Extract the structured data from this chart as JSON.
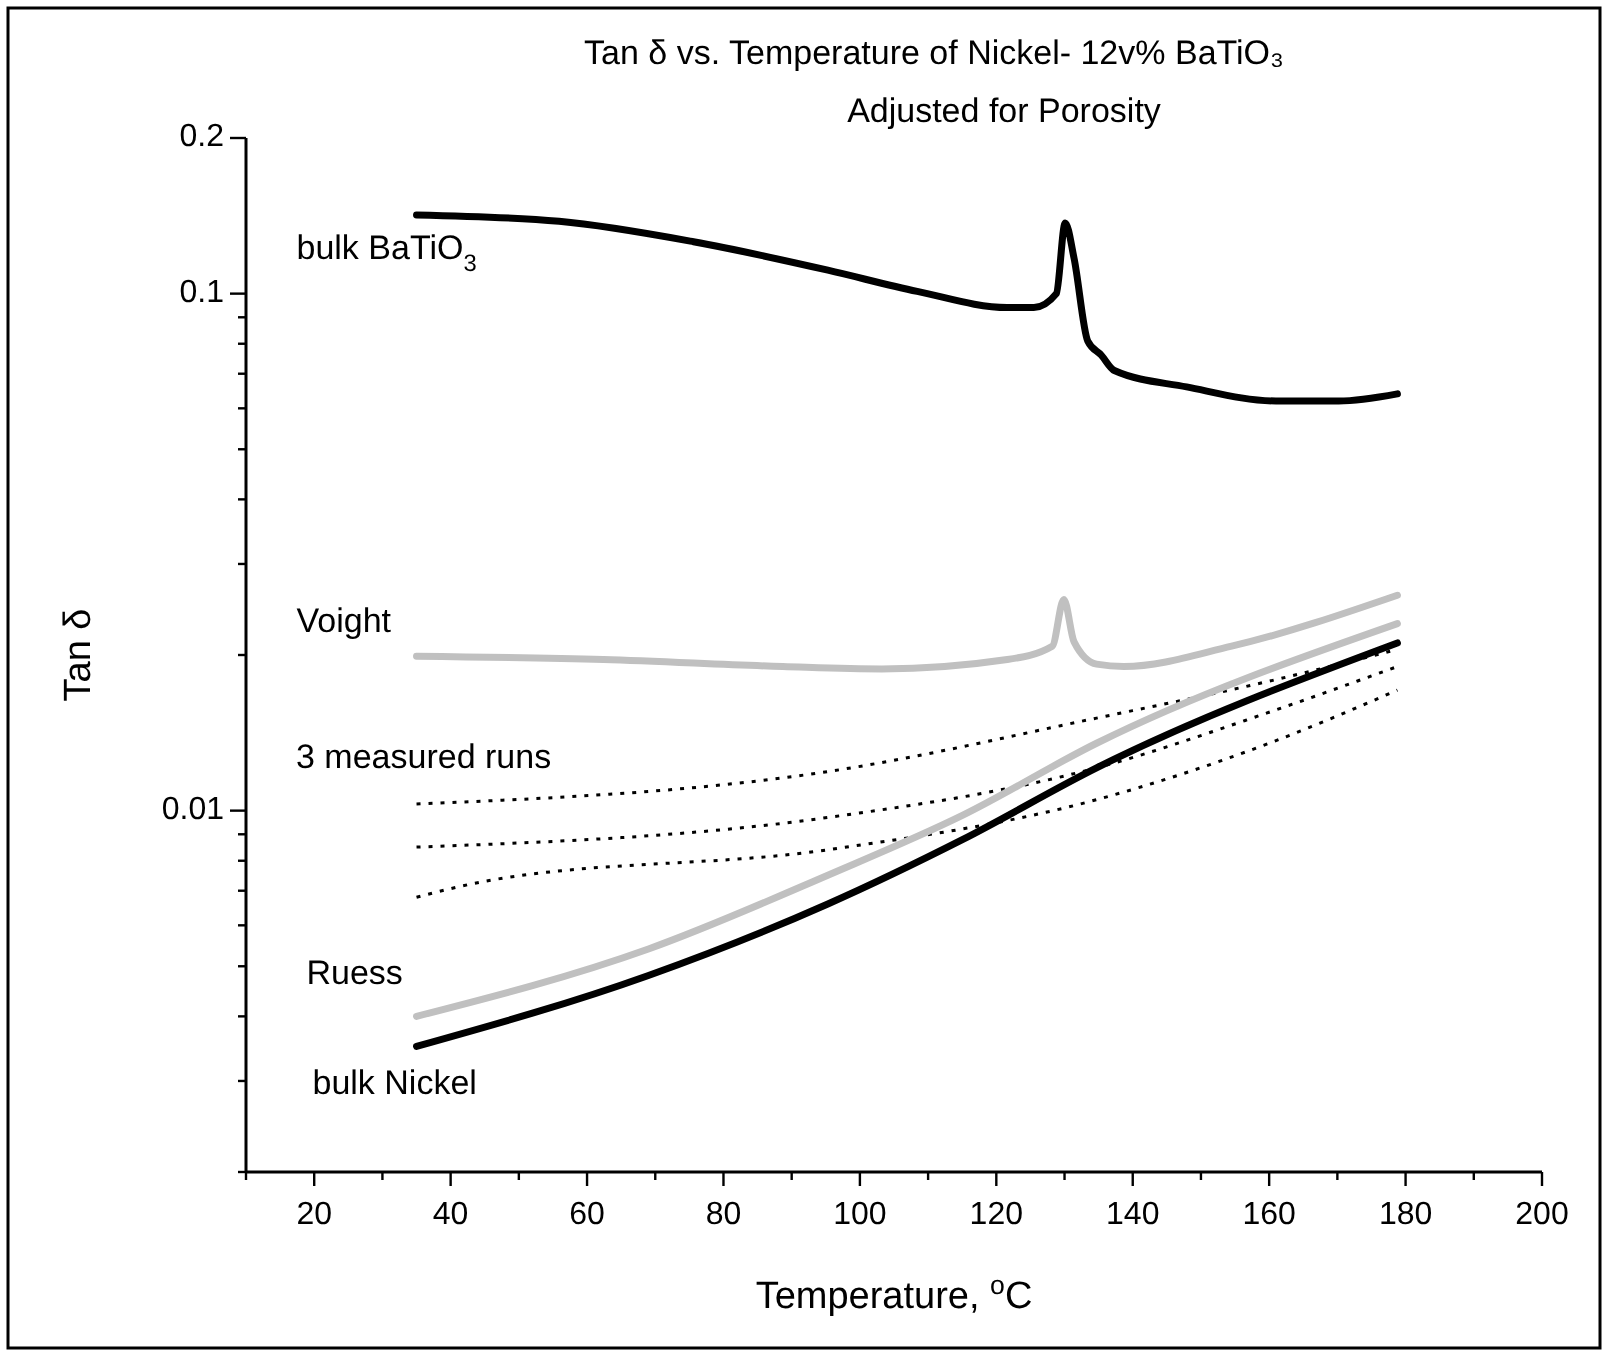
{
  "chart_data": {
    "type": "line",
    "title": "Tan δ vs. Temperature of Nickel- 12v% BaTiO₃",
    "subtitle": "Adjusted for Porosity",
    "xlabel": "Temperature, $^{o}$C",
    "ylabel": "Tan δ",
    "log": "y",
    "grid": false,
    "marker": "none",
    "xlim": [
      10,
      200
    ],
    "ylim": [
      0.002,
      0.2
    ],
    "xticks": [
      {
        "value": 10,
        "label": null
      },
      20,
      {
        "value": 30,
        "label": null
      },
      40,
      {
        "value": 50,
        "label": null
      },
      60,
      {
        "value": 70,
        "label": null
      },
      80,
      {
        "value": 90,
        "label": null
      },
      100,
      {
        "value": 110,
        "label": null
      },
      120,
      {
        "value": 130,
        "label": null
      },
      140,
      {
        "value": 150,
        "label": null
      },
      160,
      {
        "value": 170,
        "label": null
      },
      180,
      {
        "value": 190,
        "label": null
      },
      200
    ],
    "yticks": [
      {
        "value": 0.002,
        "label": null
      },
      {
        "value": 0.003,
        "label": null
      },
      {
        "value": 0.004,
        "label": null
      },
      {
        "value": 0.005,
        "label": null
      },
      {
        "value": 0.006,
        "label": null
      },
      {
        "value": 0.007,
        "label": null
      },
      {
        "value": 0.008,
        "label": null
      },
      {
        "value": 0.009,
        "label": null
      },
      0.01,
      {
        "value": 0.02,
        "label": null
      },
      {
        "value": 0.03,
        "label": null
      },
      {
        "value": 0.04,
        "label": null
      },
      {
        "value": 0.05,
        "label": null
      },
      {
        "value": 0.06,
        "label": null
      },
      {
        "value": 0.07,
        "label": null
      },
      {
        "value": 0.08,
        "label": null
      },
      {
        "value": 0.09,
        "label": null
      },
      0.1,
      0.2
    ],
    "annotations": [
      "3 measured runs"
    ],
    "series": [
      {
        "name": "bulk BaTiO$_{3}$",
        "color": "#000000",
        "line_style": "solid",
        "x": [
          35,
          55.9,
          75.6,
          95.3,
          108.4,
          121.6,
          125.5,
          128.8,
          130.1,
          131.4,
          133.4,
          135.4,
          137.3,
          147.9,
          161,
          170.2,
          178.8
        ],
        "values": [
          0.142,
          0.138,
          0.126,
          0.111,
          0.101,
          0.094,
          0.094,
          0.1,
          0.137,
          0.117,
          0.081,
          0.076,
          0.071,
          0.066,
          0.062,
          0.062,
          0.064
        ]
      },
      {
        "name": "Voight",
        "color": "#c0c0c0",
        "line_style": "solid",
        "x": [
          35,
          62.4,
          88.7,
          103.2,
          121.6,
          128.2,
          129.9,
          131.4,
          134.7,
          138.7,
          154.5,
          178.8
        ],
        "values": [
          0.0199,
          0.0196,
          0.019,
          0.0188,
          0.0196,
          0.0208,
          0.0256,
          0.0212,
          0.0192,
          0.019,
          0.0208,
          0.0261
        ]
      },
      {
        "color": "#000000",
        "line_style": "dotted",
        "x": [
          35,
          95.3,
          134.7,
          160,
          178.8
        ],
        "values": [
          0.0103,
          0.0119,
          0.0151,
          0.0178,
          0.0205
        ]
      },
      {
        "color": "#000000",
        "line_style": "dotted",
        "x": [
          35,
          95.3,
          134.7,
          160,
          178.8
        ],
        "values": [
          0.0085,
          0.0097,
          0.0121,
          0.0155,
          0.019
        ]
      },
      {
        "color": "#000000",
        "line_style": "dotted",
        "x": [
          35,
          45,
          95.3,
          134.7,
          160,
          178.8
        ],
        "values": [
          0.0068,
          0.0073,
          0.0084,
          0.0105,
          0.0135,
          0.0171
        ]
      },
      {
        "name": "Ruess",
        "color": "#c0c0c0",
        "line_style": "solid",
        "x": [
          35,
          69,
          95.3,
          115.1,
          134.7,
          178.8
        ],
        "values": [
          0.004,
          0.0054,
          0.0075,
          0.0098,
          0.0135,
          0.023
        ]
      },
      {
        "name": "bulk Nickel",
        "color": "#000000",
        "line_style": "solid",
        "x": [
          35,
          69,
          95.3,
          115.1,
          134.7,
          178.8
        ],
        "values": [
          0.0035,
          0.0048,
          0.0066,
          0.0088,
          0.0121,
          0.0211
        ]
      }
    ]
  }
}
